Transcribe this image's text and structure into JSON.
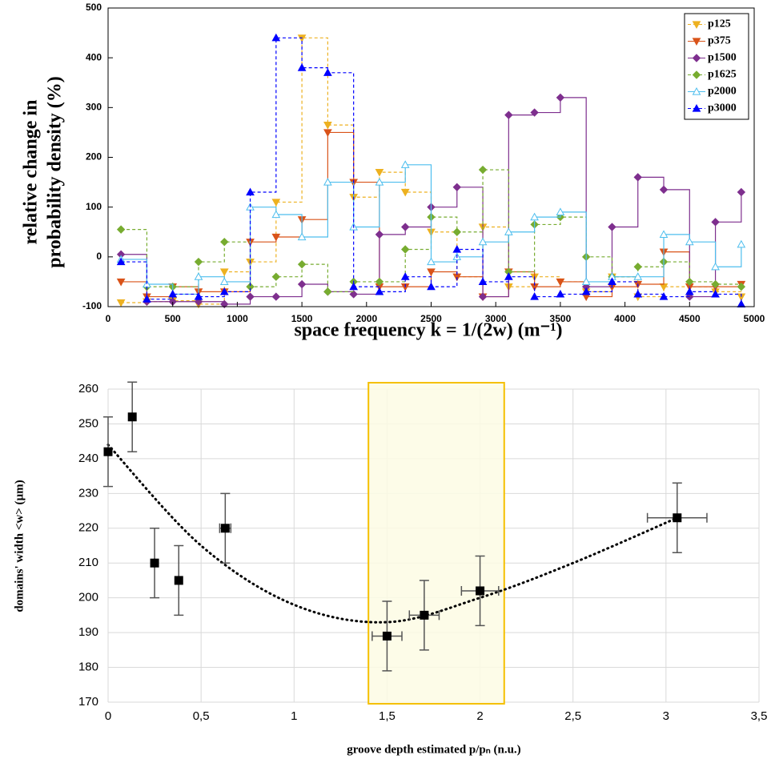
{
  "chart_data": [
    {
      "type": "step",
      "ylabel": [
        "relative change in",
        "probability density (%)"
      ],
      "xlabel": "space frequency  k = 1/(2w) (m⁻¹)",
      "x": [
        100,
        300,
        500,
        700,
        900,
        1100,
        1300,
        1500,
        1700,
        1900,
        2100,
        2300,
        2500,
        2700,
        2900,
        3100,
        3300,
        3500,
        3700,
        3900,
        4100,
        4300,
        4500,
        4700,
        4900
      ],
      "series": [
        {
          "name": "p125",
          "color": "#EDB120",
          "dashed": true,
          "marker": "v",
          "values": [
            -92,
            -90,
            -88,
            -95,
            -30,
            -10,
            110,
            440,
            265,
            120,
            170,
            130,
            50,
            -40,
            60,
            -60,
            -40,
            -50,
            -70,
            -40,
            -80,
            -60,
            -60,
            -70,
            -80
          ]
        },
        {
          "name": "p375",
          "color": "#D95319",
          "dashed": false,
          "marker": "v",
          "values": [
            -50,
            -80,
            -60,
            -70,
            -70,
            30,
            40,
            75,
            250,
            150,
            -60,
            -60,
            -30,
            -40,
            -80,
            -30,
            -60,
            -50,
            -80,
            -60,
            -55,
            10,
            -60,
            -60,
            -55
          ]
        },
        {
          "name": "p1500",
          "color": "#7E2F8E",
          "dashed": false,
          "marker": "d",
          "values": [
            5,
            -90,
            -90,
            -90,
            -95,
            -80,
            -80,
            -55,
            -70,
            -75,
            45,
            60,
            100,
            140,
            -80,
            285,
            290,
            320,
            -60,
            60,
            160,
            135,
            -80,
            70,
            130
          ]
        },
        {
          "name": "p1625",
          "color": "#77AC30",
          "dashed": true,
          "marker": "d",
          "values": [
            55,
            -60,
            -60,
            -10,
            30,
            -60,
            -40,
            -15,
            -70,
            -50,
            -50,
            15,
            80,
            50,
            175,
            -30,
            65,
            80,
            0,
            -40,
            -20,
            -10,
            -50,
            -55,
            -60
          ]
        },
        {
          "name": "p2000",
          "color": "#4DBEEE",
          "dashed": false,
          "marker": "^o",
          "values": [
            -5,
            -55,
            -75,
            -40,
            -50,
            100,
            85,
            40,
            150,
            60,
            150,
            185,
            -10,
            0,
            30,
            50,
            80,
            90,
            -50,
            -40,
            -40,
            45,
            30,
            -20,
            25
          ]
        },
        {
          "name": "p3000",
          "color": "#0000FF",
          "dashed": true,
          "marker": "^",
          "values": [
            -10,
            -85,
            -75,
            -80,
            -70,
            130,
            440,
            380,
            370,
            -60,
            -70,
            -40,
            -60,
            15,
            -50,
            -40,
            -80,
            -75,
            -70,
            -50,
            -75,
            -80,
            -70,
            -75,
            -95
          ]
        }
      ],
      "xlim": [
        0,
        5000
      ],
      "xticks": [
        0,
        500,
        1000,
        1500,
        2000,
        2500,
        3000,
        3500,
        4000,
        4500,
        5000
      ],
      "ylim": [
        -100,
        500
      ],
      "yticks": [
        -100,
        0,
        100,
        200,
        300,
        400,
        500
      ],
      "grid": false,
      "legend": "northeast"
    },
    {
      "type": "scatter",
      "ylabel": "domains' width <w> (µm)",
      "xlabel": "groove depth estimated p/pₙ (n.u.)",
      "x": [
        0,
        0.13,
        0.25,
        0.38,
        0.63,
        1.5,
        1.7,
        2.0,
        3.06
      ],
      "values": [
        242,
        252,
        210,
        205,
        220,
        189,
        195,
        202,
        223
      ],
      "yerr": [
        10,
        10,
        10,
        10,
        10,
        10,
        10,
        10,
        10
      ],
      "xerr": [
        0,
        0,
        0,
        0,
        0.03,
        0.08,
        0.08,
        0.1,
        0.16
      ],
      "color": "#000000",
      "fit": {
        "x": [
          0,
          0.5,
          1,
          1.5,
          2,
          2.5,
          3.06
        ],
        "values": [
          244,
          215,
          198,
          193,
          200,
          210,
          223
        ]
      },
      "highlight": {
        "xlim": [
          1.4,
          2.13
        ],
        "color": "#fdfbe4",
        "edge": "#f5c000"
      },
      "xlim": [
        0,
        3.5
      ],
      "xticks": [
        0,
        {
          "value": 0.5,
          "label": "0,5"
        },
        1,
        {
          "value": 1.5,
          "label": "1,5"
        },
        2,
        {
          "value": 2.5,
          "label": "2,5"
        },
        3,
        {
          "value": 3.5,
          "label": "3,5"
        }
      ],
      "ylim": [
        170,
        260
      ],
      "yticks": [
        170,
        180,
        190,
        200,
        210,
        220,
        230,
        240,
        250,
        260
      ],
      "grid": true
    }
  ]
}
